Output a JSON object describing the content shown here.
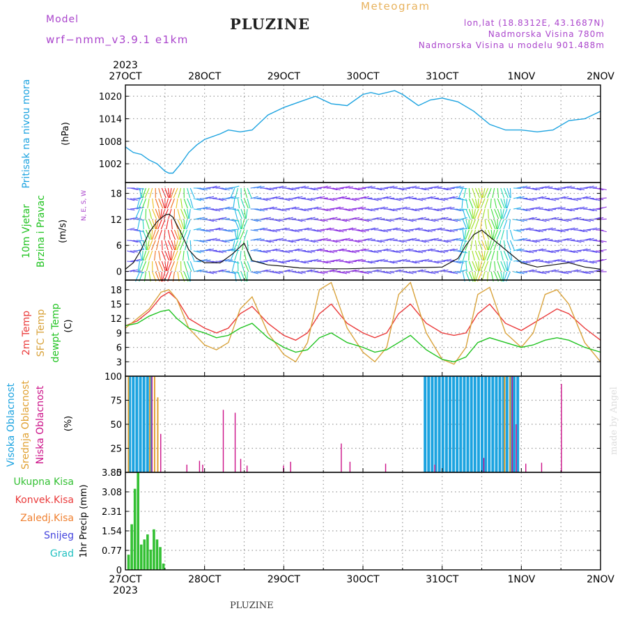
{
  "header": {
    "model_label": "Model",
    "model_name": "wrf−nmm_v3.9.1  e1km",
    "title": "PLUZINE",
    "meteogram": "Meteogram",
    "lonlat": "lon,lat (18.8312E, 43.1687N)",
    "elev": "Nadmorska Visina 780m",
    "elev_model": "Nadmorska Visina u modelu 901.488m",
    "footer": "PLUZINE",
    "watermark": "made by Angel"
  },
  "colors": {
    "pressure": "#1ca3e0",
    "t2m": "#ea3a3a",
    "sfc": "#d9a33c",
    "dewpt": "#21c321",
    "high_cloud": "#1ca3e0",
    "mid_cloud": "#e0a030",
    "low_cloud": "#cc1188",
    "precip": "#33c033",
    "purple": "#aa44cc"
  },
  "chart_data": [
    {
      "type": "line",
      "panel": "pressure",
      "ylabel": "Pritisak na nivou mora",
      "unit": "(hPa)",
      "ylim": [
        997,
        1023
      ],
      "yticks": [
        1002,
        1008,
        1014,
        1020
      ],
      "x_top": [
        "27OCT",
        "28OCT",
        "29OCT",
        "30OCT",
        "31OCT",
        "1NOV",
        "2NOV"
      ],
      "x_top_year": "2023",
      "series": [
        {
          "x": [
            0,
            0.1,
            0.2,
            0.3,
            0.4,
            0.5,
            0.55,
            0.6,
            0.7,
            0.8,
            0.9,
            1.0,
            1.2,
            1.3,
            1.45,
            1.6,
            1.8,
            2.0,
            2.2,
            2.4,
            2.6,
            2.8,
            3.0,
            3.1,
            3.2,
            3.4,
            3.5,
            3.6,
            3.7,
            3.85,
            4.0,
            4.2,
            4.4,
            4.6,
            4.8,
            5.0,
            5.2,
            5.4,
            5.6,
            5.8,
            6.0
          ],
          "y": [
            1006.5,
            1005,
            1004.5,
            1003,
            1002,
            1000,
            999.5,
            999.5,
            1002,
            1005,
            1007,
            1008.5,
            1010,
            1011,
            1010.5,
            1011,
            1015,
            1017,
            1018.5,
            1020,
            1018,
            1017.5,
            1020.5,
            1021,
            1020.5,
            1021.5,
            1020.5,
            1019,
            1017.5,
            1019,
            1019.5,
            1018.5,
            1016,
            1012.5,
            1011,
            1011,
            1010.5,
            1011,
            1013.5,
            1014,
            1016
          ]
        }
      ]
    },
    {
      "type": "line",
      "panel": "wind",
      "ylabel": "10m Vjetar / Brzina i Pravac",
      "unit": "(m/s)",
      "compass": "N, E, S, W",
      "ylim": [
        -2,
        20.5
      ],
      "yticks": [
        0,
        6,
        12,
        18
      ],
      "series": [
        {
          "name": "wind speed",
          "x": [
            0,
            0.1,
            0.2,
            0.3,
            0.4,
            0.5,
            0.55,
            0.6,
            0.7,
            0.8,
            0.9,
            1.0,
            1.2,
            1.35,
            1.5,
            1.6,
            1.8,
            2.0,
            2.2,
            2.4,
            2.6,
            2.8,
            3.0,
            3.2,
            3.4,
            3.6,
            3.8,
            4.0,
            4.2,
            4.3,
            4.4,
            4.5,
            4.6,
            4.8,
            5.0,
            5.2,
            5.4,
            5.6,
            5.8,
            6.0
          ],
          "y": [
            0.5,
            2,
            5,
            9,
            11.5,
            13,
            13.2,
            12.5,
            9,
            5,
            3,
            2,
            2,
            4,
            6.5,
            2.5,
            1.5,
            1.2,
            0.8,
            0.7,
            0.6,
            0.6,
            0.7,
            0.8,
            0.8,
            0.9,
            0.9,
            1.0,
            3,
            6,
            8.5,
            9.5,
            8,
            5,
            2,
            1,
            1.5,
            2,
            1,
            0.5
          ]
        }
      ]
    },
    {
      "type": "line",
      "panel": "temperature",
      "labels": [
        "2m Temp",
        "SFC Temp",
        "dewpt Temp"
      ],
      "unit": "(C)",
      "ylim": [
        0,
        20
      ],
      "yticks": [
        3,
        6,
        9,
        12,
        15,
        18
      ],
      "x": [
        0,
        0.15,
        0.3,
        0.45,
        0.55,
        0.65,
        0.8,
        1.0,
        1.15,
        1.3,
        1.45,
        1.6,
        1.8,
        2.0,
        2.15,
        2.3,
        2.45,
        2.6,
        2.8,
        3.0,
        3.15,
        3.3,
        3.45,
        3.6,
        3.8,
        4.0,
        4.15,
        4.3,
        4.45,
        4.6,
        4.8,
        5.0,
        5.15,
        5.3,
        5.45,
        5.6,
        5.8,
        6.0
      ],
      "series": [
        {
          "name": "2m Temp",
          "y": [
            10.5,
            11.5,
            13.5,
            16.5,
            17.5,
            16,
            12,
            10,
            9,
            10,
            13,
            14.5,
            11,
            8.5,
            7.5,
            9,
            13,
            15,
            11,
            9,
            8,
            9,
            13,
            15,
            11,
            9,
            8.5,
            9,
            13,
            15,
            11,
            9.5,
            11,
            12.5,
            14,
            13,
            10,
            7.5
          ]
        },
        {
          "name": "SFC Temp",
          "y": [
            10,
            12,
            14,
            17.5,
            18,
            16,
            10,
            6.5,
            5.5,
            7,
            14,
            16.5,
            9,
            4.5,
            3,
            7,
            18,
            19.5,
            10,
            5,
            3,
            6,
            17,
            19.5,
            9,
            3.5,
            2.5,
            6,
            17,
            18.5,
            9,
            6,
            9,
            17,
            18,
            15,
            7,
            3
          ]
        },
        {
          "name": "dewpt Temp",
          "y": [
            10.5,
            11,
            12.5,
            13.5,
            13.8,
            12,
            10,
            9,
            8,
            8.5,
            10,
            11,
            8,
            6,
            5,
            5.5,
            8,
            9,
            7,
            6,
            5,
            5.5,
            7,
            8.5,
            5.5,
            3.5,
            3,
            4,
            7,
            8,
            7,
            6,
            6.5,
            7.5,
            8,
            7.5,
            6,
            5
          ]
        }
      ]
    },
    {
      "type": "bar",
      "panel": "clouds",
      "labels": [
        "Visoka Oblacnost",
        "Srednja Oblacnost",
        "Niska Oblacnost"
      ],
      "unit": "(%)",
      "ylim": [
        0,
        100
      ],
      "yticks": [
        0,
        25,
        50,
        75,
        100
      ],
      "high_clouds": {
        "x_range_1": [
          0.05,
          0.36
        ],
        "x_range_2": [
          3.78,
          4.96
        ],
        "value": 100
      },
      "low_cloud_spikes": {
        "x": [
          0.33,
          0.44,
          0.77,
          0.93,
          0.97,
          1.23,
          1.38,
          1.45,
          1.53,
          1.99,
          2.08,
          2.72,
          2.83,
          3.28,
          3.9,
          4.52,
          4.88,
          4.93,
          5.05,
          5.25,
          5.5
        ],
        "y": [
          100,
          40,
          8,
          12,
          8,
          65,
          62,
          14,
          7,
          7,
          11,
          30,
          11,
          9,
          8,
          15,
          100,
          50,
          9,
          10,
          92
        ]
      }
    },
    {
      "type": "bar",
      "panel": "precip",
      "labels": [
        "Ukupna Kisa",
        "Konvek.Kisa",
        "Zaledj.Kisa",
        "Snijeg",
        "Grad"
      ],
      "ylabel": "1hr Precip (mm)",
      "ylim": [
        0,
        3.85
      ],
      "yticks": [
        0,
        0.77,
        1.54,
        2.31,
        3.08,
        3.85
      ],
      "tick_labels": [
        "0",
        "0.77",
        "1.54",
        "2.31",
        "3.08",
        "3.85"
      ],
      "x_bottom": [
        "27OCT",
        "28OCT",
        "29OCT",
        "30OCT",
        "31OCT",
        "1NOV",
        "2NOV"
      ],
      "x_bottom_year": "2023",
      "x": [
        0.04,
        0.08,
        0.12,
        0.16,
        0.2,
        0.24,
        0.28,
        0.32,
        0.36,
        0.4,
        0.44,
        0.48
      ],
      "y": [
        0.6,
        1.8,
        3.2,
        3.85,
        1.0,
        1.2,
        1.4,
        0.8,
        1.6,
        1.2,
        0.9,
        0.25
      ]
    }
  ]
}
